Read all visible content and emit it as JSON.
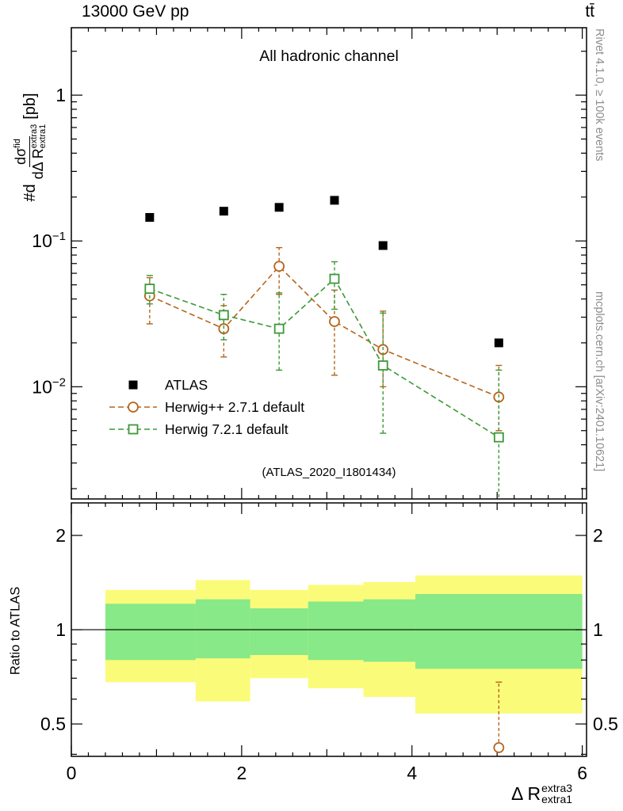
{
  "header": {
    "collision": "13000 GeV pp",
    "process": "tt̄"
  },
  "watermarks": {
    "rivet": "Rivet 4.1.0, ≥ 100k events",
    "mcplots": "mcplots.cern.ch [arXiv:2401.10621]"
  },
  "axis_labels": {
    "y_prefix": "#d",
    "y_num_base": "dσ",
    "y_num_sup": "fid",
    "y_den_base": "dΔ R",
    "y_den_sup": "extra3",
    "y_den_sub": "extra1",
    "y_suffix": "[pb]",
    "ratio_y": "Ratio to ATLAS",
    "x_base": "Δ R",
    "x_sup": "extra3",
    "x_sub": "extra1"
  },
  "chart_data": {
    "type": "scatter",
    "title": "All hadronic channel",
    "watermark": "(ATLAS_2020_I1801434)",
    "x_range": [
      0,
      6.05
    ],
    "top_y_range": [
      0.0017,
      2.9
    ],
    "ratio_y_range": [
      0.394,
      2.54
    ],
    "top_y_log": true,
    "ratio_y_log": true,
    "x_major_ticks": [
      0,
      2,
      4,
      6
    ],
    "top_y_ticks": [
      {
        "v": 1,
        "mant": "1",
        "exp": ""
      },
      {
        "v": 0.1,
        "mant": "10",
        "exp": "−1"
      },
      {
        "v": 0.01,
        "mant": "10",
        "exp": "−2"
      }
    ],
    "ratio_y_ticks": [
      {
        "v": 2,
        "label": "2"
      },
      {
        "v": 1,
        "label": "1"
      },
      {
        "v": 0.5,
        "label": "0.5"
      }
    ],
    "band_colors": {
      "outer": "#fbfb7a",
      "inner": "#87e987"
    },
    "series": [
      {
        "name": "ATLAS",
        "marker": "filled-square",
        "color": "#000000",
        "line": "none",
        "points": [
          {
            "x": 0.92,
            "y": 0.145
          },
          {
            "x": 1.79,
            "y": 0.16
          },
          {
            "x": 2.44,
            "y": 0.17
          },
          {
            "x": 3.09,
            "y": 0.19
          },
          {
            "x": 3.66,
            "y": 0.093
          },
          {
            "x": 5.02,
            "y": 0.02
          }
        ]
      },
      {
        "name": "Herwig++ 2.7.1 default",
        "marker": "open-circle",
        "color": "#b5651d",
        "line": "dashed",
        "points": [
          {
            "x": 0.92,
            "y": 0.042,
            "ylo": 0.027,
            "yhi": 0.056
          },
          {
            "x": 1.79,
            "y": 0.025,
            "ylo": 0.016,
            "yhi": 0.036
          },
          {
            "x": 2.44,
            "y": 0.067,
            "ylo": 0.043,
            "yhi": 0.09
          },
          {
            "x": 3.09,
            "y": 0.028,
            "ylo": 0.012,
            "yhi": 0.046
          },
          {
            "x": 3.66,
            "y": 0.018,
            "ylo": 0.01,
            "yhi": 0.033
          },
          {
            "x": 5.02,
            "y": 0.0085,
            "ylo": 0.005,
            "yhi": 0.014
          }
        ]
      },
      {
        "name": "Herwig 7.2.1 default",
        "marker": "open-square",
        "color": "#3c9937",
        "line": "dashed",
        "points": [
          {
            "x": 0.92,
            "y": 0.047,
            "ylo": 0.037,
            "yhi": 0.058
          },
          {
            "x": 1.79,
            "y": 0.031,
            "ylo": 0.021,
            "yhi": 0.043
          },
          {
            "x": 2.44,
            "y": 0.025,
            "ylo": 0.013,
            "yhi": 0.044
          },
          {
            "x": 3.09,
            "y": 0.055,
            "ylo": 0.034,
            "yhi": 0.072
          },
          {
            "x": 3.66,
            "y": 0.014,
            "ylo": 0.0048,
            "yhi": 0.032
          },
          {
            "x": 5.02,
            "y": 0.0045,
            "ylo": 0.0016,
            "yhi": 0.013
          }
        ]
      }
    ],
    "ratio_bins": [
      {
        "xlo": 0.4,
        "xhi": 1.46,
        "yellow": [
          0.68,
          1.34
        ],
        "green": [
          0.8,
          1.21
        ]
      },
      {
        "xlo": 1.46,
        "xhi": 2.1,
        "yellow": [
          0.59,
          1.44
        ],
        "green": [
          0.81,
          1.25
        ]
      },
      {
        "xlo": 2.1,
        "xhi": 2.78,
        "yellow": [
          0.7,
          1.34
        ],
        "green": [
          0.83,
          1.17
        ]
      },
      {
        "xlo": 2.78,
        "xhi": 3.43,
        "yellow": [
          0.65,
          1.39
        ],
        "green": [
          0.8,
          1.23
        ]
      },
      {
        "xlo": 3.43,
        "xhi": 4.04,
        "yellow": [
          0.61,
          1.42
        ],
        "green": [
          0.79,
          1.25
        ]
      },
      {
        "xlo": 4.04,
        "xhi": 6.0,
        "yellow": [
          0.54,
          1.49
        ],
        "green": [
          0.75,
          1.3
        ]
      }
    ],
    "ratio_points": [
      {
        "series": 1,
        "x": 5.02,
        "y": 0.42,
        "yhi": 0.68
      }
    ]
  }
}
